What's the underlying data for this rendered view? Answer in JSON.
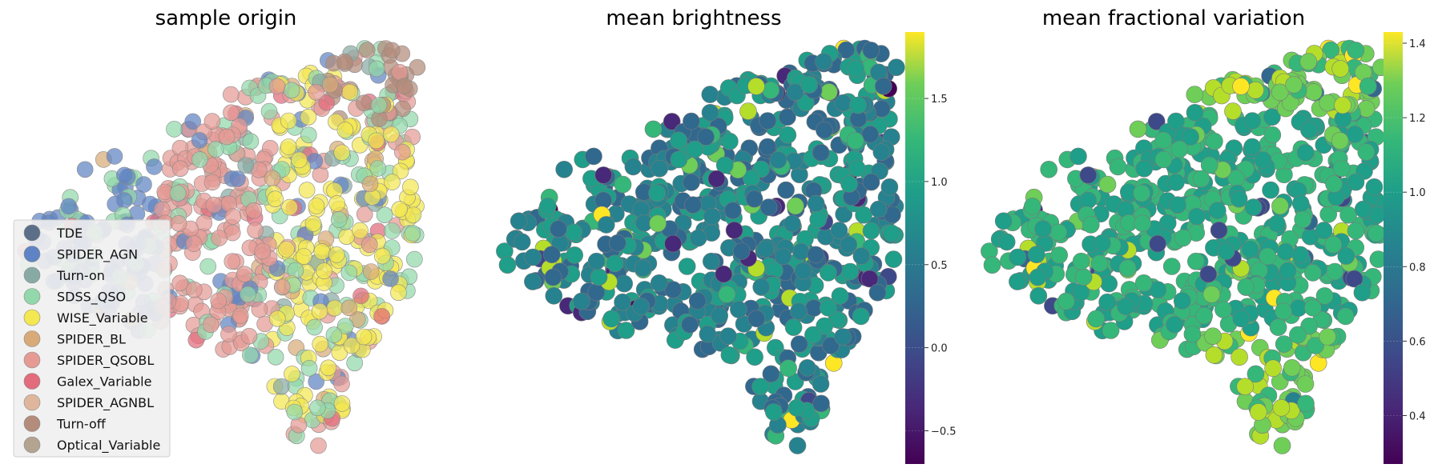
{
  "figure": {
    "panels": [
      "sample origin",
      "mean brightness",
      "mean fractional variation"
    ]
  },
  "chart_data": [
    {
      "type": "scatter",
      "title": "sample origin",
      "xlabel": "",
      "ylabel": "",
      "grid": false,
      "legend_position": "bottom-left",
      "categories": [
        "TDE",
        "SPIDER_AGN",
        "Turn-on",
        "SDSS_QSO",
        "WISE_Variable",
        "SPIDER_BL",
        "SPIDER_QSOBL",
        "Galex_Variable",
        "SPIDER_AGNBL",
        "Turn-off",
        "Optical_Variable"
      ],
      "colors": [
        "#5b7088",
        "#5f83c4",
        "#88aaa4",
        "#92d8aa",
        "#f3e752",
        "#d8aa78",
        "#e59a94",
        "#e26b7c",
        "#dfb69c",
        "#b38c7c",
        "#b2a490"
      ],
      "series_summary": [
        {
          "name": "SDSS_QSO",
          "region": "left and upper portion of the embedding"
        },
        {
          "name": "WISE_Variable",
          "region": "right lobe of the embedding"
        },
        {
          "name": "SPIDER_QSOBL",
          "region": "middle and right lobe"
        },
        {
          "name": "Turn-off",
          "region": "upper-right tip"
        }
      ]
    },
    {
      "type": "scatter",
      "title": "mean brightness",
      "colorbar": {
        "colormap": "viridis",
        "range": [
          -0.7,
          1.9
        ],
        "ticks": [
          -0.5,
          0.0,
          0.5,
          1.0,
          1.5
        ],
        "tick_labels": [
          "−0.5",
          "0.0",
          "0.5",
          "1.0",
          "1.5"
        ]
      },
      "typical_value": 0.5
    },
    {
      "type": "scatter",
      "title": "mean fractional variation",
      "colorbar": {
        "colormap": "viridis",
        "range": [
          0.27,
          1.43
        ],
        "ticks": [
          0.4,
          0.6,
          0.8,
          1.0,
          1.2,
          1.4
        ],
        "tick_labels": [
          "0.4",
          "0.6",
          "0.8",
          "1.0",
          "1.2",
          "1.4"
        ]
      },
      "typical_value": 1.05
    }
  ]
}
